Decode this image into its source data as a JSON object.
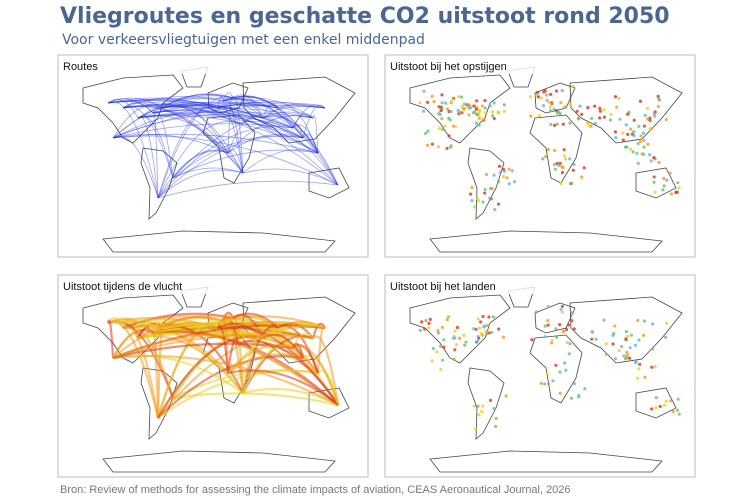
{
  "header": {
    "title": "Vliegroutes en geschatte CO2 uitstoot rond 2050",
    "subtitle": "Voor verkeersvliegtuigen met een enkel middenpad"
  },
  "panels": [
    {
      "title": "Routes"
    },
    {
      "title": "Uitstoot bij het opstijgen"
    },
    {
      "title": "Uitstoot tijdens de vlucht"
    },
    {
      "title": "Uitstoot bij het landen"
    }
  ],
  "footer": {
    "source": "Bron: Review of methods for assessing the climate impacts of aviation, CEAS Aeronautical Journal, 2026"
  }
}
